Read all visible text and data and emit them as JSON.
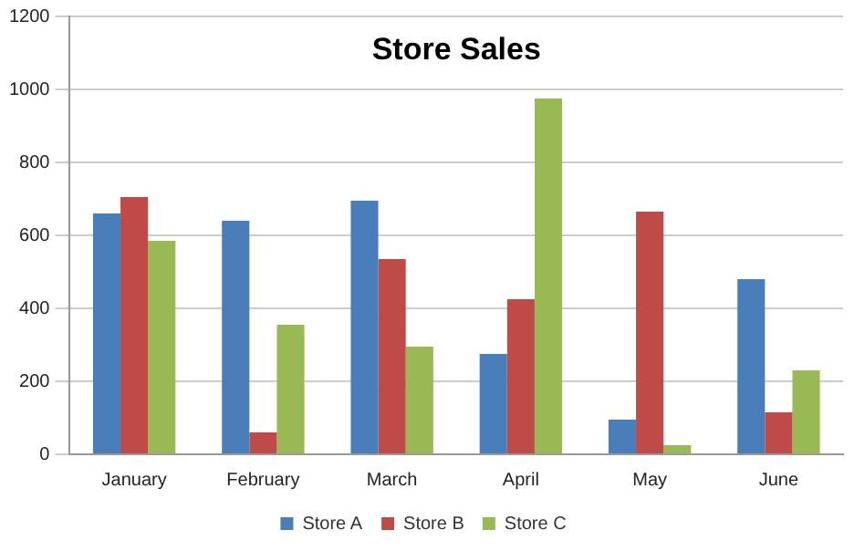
{
  "chart_data": {
    "type": "bar",
    "title": "Store Sales",
    "categories": [
      "January",
      "February",
      "March",
      "April",
      "May",
      "June"
    ],
    "series": [
      {
        "name": "Store A",
        "color": "#4a7ebb",
        "values": [
          660,
          640,
          695,
          275,
          95,
          480
        ]
      },
      {
        "name": "Store B",
        "color": "#be4b48",
        "values": [
          705,
          60,
          535,
          425,
          665,
          115
        ]
      },
      {
        "name": "Store C",
        "color": "#98b954",
        "values": [
          585,
          355,
          295,
          975,
          25,
          230
        ]
      }
    ],
    "ylim": [
      0,
      1200
    ],
    "yticks": [
      0,
      200,
      400,
      600,
      800,
      1000,
      1200
    ],
    "grid": "y",
    "legend": "bottom"
  }
}
